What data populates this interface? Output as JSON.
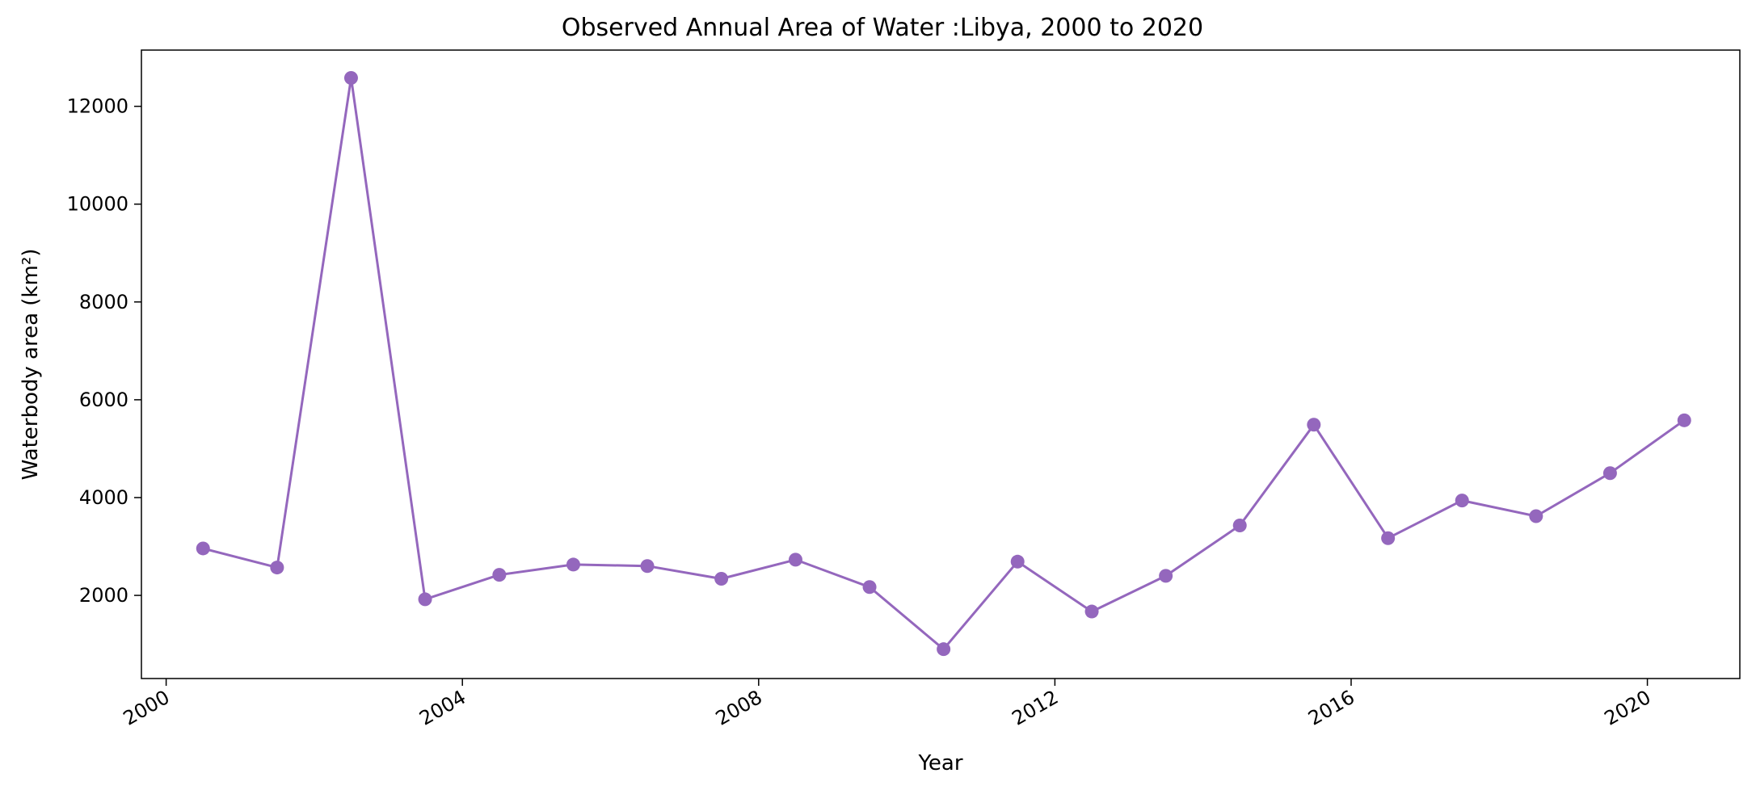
{
  "chart_data": {
    "type": "line",
    "title": "Observed Annual Area of Water :Libya, 2000 to 2020",
    "xlabel": "Year",
    "ylabel": "Waterbody area (km²)",
    "x_axis_type": "date",
    "xlim": [
      "1999-09-01",
      "2021-04-01"
    ],
    "ylim": [
      300,
      13150
    ],
    "x_ticks": [
      "2000",
      "2004",
      "2008",
      "2012",
      "2016",
      "2020"
    ],
    "y_ticks": [
      2000,
      4000,
      6000,
      8000,
      10000,
      12000
    ],
    "y_tick_labels": [
      "2000",
      "4000",
      "6000",
      "8000",
      "10000",
      "12000"
    ],
    "grid": false,
    "legend": "none",
    "series": [
      {
        "color": "#9467bd",
        "marker": "circle",
        "x": [
          "2000-07-01",
          "2001-07-01",
          "2002-07-01",
          "2003-07-01",
          "2004-07-01",
          "2005-07-01",
          "2006-07-01",
          "2007-07-01",
          "2008-07-01",
          "2009-07-01",
          "2010-07-01",
          "2011-07-01",
          "2012-07-01",
          "2013-07-01",
          "2014-07-01",
          "2015-07-01",
          "2016-07-01",
          "2017-07-01",
          "2018-07-01",
          "2019-07-01",
          "2020-07-01"
        ],
        "values": [
          2960,
          2570,
          12580,
          1920,
          2420,
          2630,
          2600,
          2340,
          2730,
          2170,
          900,
          2690,
          1670,
          2400,
          3430,
          5490,
          3170,
          3940,
          3620,
          4500,
          5580
        ]
      }
    ]
  }
}
